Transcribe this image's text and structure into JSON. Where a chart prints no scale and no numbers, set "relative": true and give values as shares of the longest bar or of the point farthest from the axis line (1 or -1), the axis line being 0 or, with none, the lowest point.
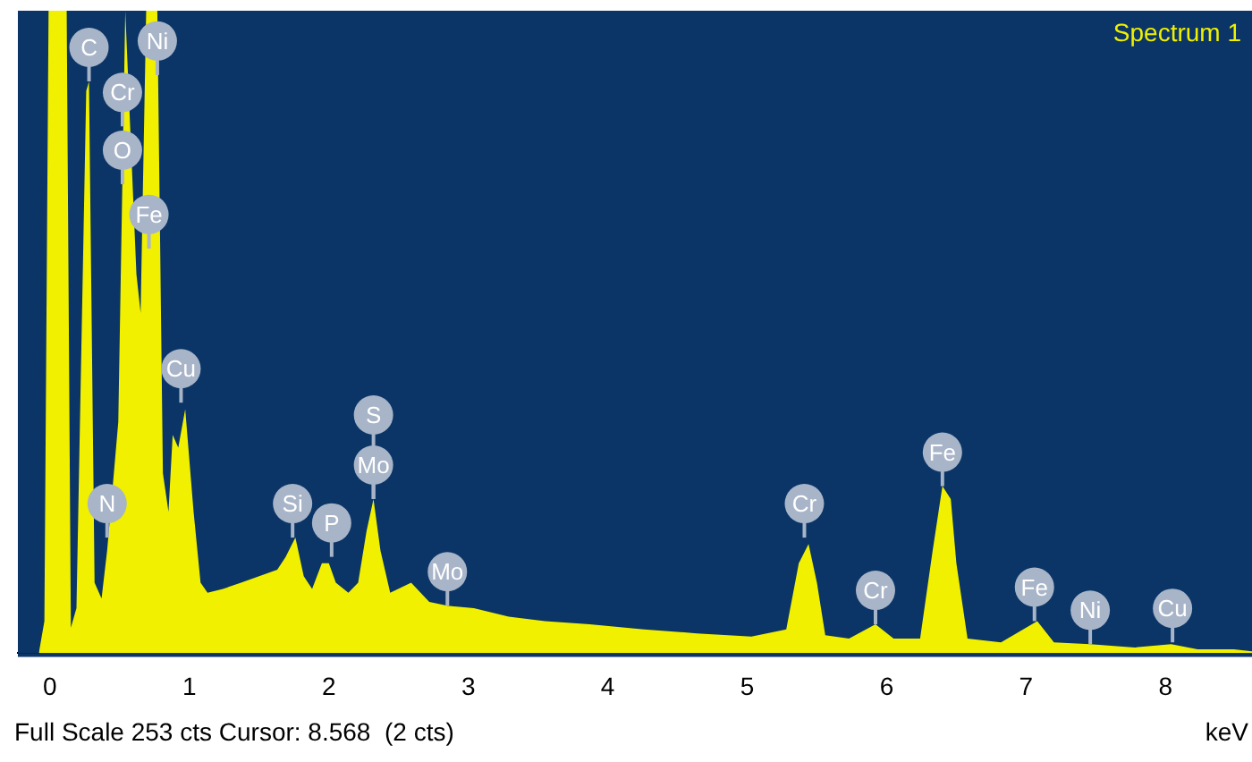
{
  "chart_data": {
    "type": "area",
    "title": "Spectrum 1",
    "xlabel": "keV",
    "relative": true,
    "x": [
      -0.08,
      -0.04,
      -0.01,
      0.12,
      0.15,
      0.19,
      0.26,
      0.28,
      0.32,
      0.37,
      0.41,
      0.49,
      0.54,
      0.62,
      0.65,
      0.69,
      0.77,
      0.81,
      0.85,
      0.88,
      0.92,
      0.97,
      1.03,
      1.08,
      1.13,
      1.24,
      1.37,
      1.5,
      1.63,
      1.69,
      1.76,
      1.82,
      1.88,
      1.95,
      2.0,
      2.05,
      2.14,
      2.21,
      2.27,
      2.32,
      2.37,
      2.44,
      2.59,
      2.72,
      2.85,
      3.04,
      3.29,
      3.55,
      3.87,
      4.26,
      4.64,
      5.03,
      5.28,
      5.37,
      5.44,
      5.5,
      5.56,
      5.73,
      5.92,
      6.05,
      6.24,
      6.33,
      6.4,
      6.46,
      6.5,
      6.58,
      6.82,
      7.08,
      7.2,
      7.46,
      7.78,
      8.04,
      8.23,
      8.49,
      8.62
    ],
    "series": [
      {
        "color": "#f0f000",
        "values": [
          0,
          0.05,
          1,
          1,
          0.04,
          0.07,
          0.875,
          0.89,
          0.11,
          0.085,
          0.16,
          0.36,
          1,
          0.59,
          0.53,
          1,
          1,
          0.28,
          0.22,
          0.34,
          0.32,
          0.38,
          0.22,
          0.11,
          0.094,
          0.1,
          0.11,
          0.12,
          0.13,
          0.15,
          0.18,
          0.12,
          0.1,
          0.14,
          0.14,
          0.11,
          0.094,
          0.11,
          0.19,
          0.24,
          0.16,
          0.094,
          0.11,
          0.08,
          0.074,
          0.07,
          0.057,
          0.05,
          0.045,
          0.037,
          0.031,
          0.026,
          0.037,
          0.14,
          0.17,
          0.11,
          0.028,
          0.023,
          0.045,
          0.023,
          0.023,
          0.16,
          0.26,
          0.24,
          0.14,
          0.023,
          0.017,
          0.05,
          0.017,
          0.014,
          0.009,
          0.014,
          0.006,
          0.006,
          0.003
        ]
      }
    ],
    "xlim": [
      -0.23,
      8.62
    ],
    "xticks": [
      0,
      1,
      2,
      3,
      4,
      5,
      6,
      7,
      8
    ],
    "grid": false,
    "legend": false,
    "annotations": [
      {
        "text": "C",
        "x": 0.28,
        "y": 0.89
      },
      {
        "text": "Ni",
        "x": 0.77,
        "y": 0.9
      },
      {
        "text": "Cr",
        "x": 0.52,
        "y": 0.82
      },
      {
        "text": "O",
        "x": 0.52,
        "y": 0.73
      },
      {
        "text": "Fe",
        "x": 0.71,
        "y": 0.63
      },
      {
        "text": "Cu",
        "x": 0.94,
        "y": 0.39
      },
      {
        "text": "N",
        "x": 0.41,
        "y": 0.18
      },
      {
        "text": "Si",
        "x": 1.74,
        "y": 0.18
      },
      {
        "text": "P",
        "x": 2.02,
        "y": 0.15
      },
      {
        "text": "S",
        "x": 2.32,
        "y": 0.24
      },
      {
        "text": "Mo",
        "x": 2.32,
        "y": 0.24
      },
      {
        "text": "Mo",
        "x": 2.85,
        "y": 0.074
      },
      {
        "text": "Cr",
        "x": 5.41,
        "y": 0.18
      },
      {
        "text": "Cr",
        "x": 5.92,
        "y": 0.045
      },
      {
        "text": "Fe",
        "x": 6.4,
        "y": 0.26
      },
      {
        "text": "Fe",
        "x": 7.06,
        "y": 0.05
      },
      {
        "text": "Ni",
        "x": 7.46,
        "y": 0.014
      },
      {
        "text": "Cu",
        "x": 8.05,
        "y": 0.017
      },
      "Full Scale 253 cts Cursor: 8.568  (2 cts)"
    ]
  }
}
